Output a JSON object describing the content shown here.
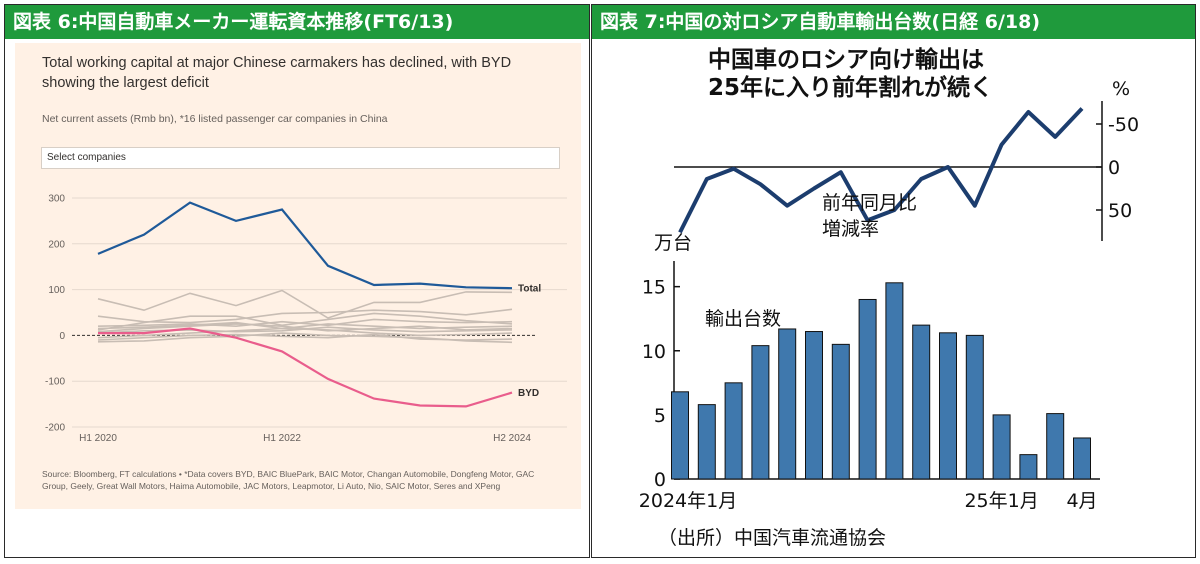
{
  "left_panel": {
    "header": "図表 6:中国自動車メーカー運転資本推移(FT6/13)",
    "select_label": "Select companies"
  },
  "right_panel": {
    "header": "図表 7:中国の対ロシア自動車輸出台数(日経 6/18)"
  },
  "colors": {
    "header_bg": "#1f9a3c",
    "ft_background": "#fff1e5",
    "total_line": "#1f5a99",
    "byd_line": "#e95d8c",
    "other_lines": "#c8bdb4",
    "nk_line": "#1c3d6e",
    "nk_bar": "#3f78ad"
  },
  "chart_data": [
    {
      "type": "line",
      "title": "Total working capital at major Chinese carmakers has declined, with BYD showing the largest deficit",
      "subtitle": "Net current assets (Rmb bn), *16 listed passenger car companies in China",
      "x": [
        "H1 2020",
        "H2 2020",
        "H1 2021",
        "H2 2021",
        "H1 2022",
        "H2 2022",
        "H1 2023",
        "H2 2023",
        "H1 2024",
        "H2 2024"
      ],
      "x_tick_labels": [
        "H1 2020",
        "H1 2022",
        "H2 2024"
      ],
      "ylim": [
        -200,
        300
      ],
      "y_ticks": [
        "300",
        "200",
        "100",
        "0",
        "-100",
        "-200"
      ],
      "zero_line": "dashed",
      "grid": true,
      "series": [
        {
          "name": "Total",
          "values": [
            178,
            220,
            290,
            250,
            275,
            152,
            110,
            113,
            105,
            103
          ]
        },
        {
          "name": "BYD",
          "values": [
            5,
            5,
            15,
            -5,
            -35,
            -95,
            -138,
            -153,
            -155,
            -125
          ]
        }
      ],
      "other_companies": [
        [
          80,
          55,
          92,
          65,
          98,
          38,
          72,
          72,
          95,
          94
        ],
        [
          42,
          30,
          28,
          35,
          48,
          50,
          55,
          52,
          45,
          57
        ],
        [
          12,
          28,
          42,
          42,
          22,
          35,
          48,
          42,
          32,
          25
        ],
        [
          20,
          22,
          25,
          20,
          30,
          22,
          35,
          30,
          28,
          30
        ],
        [
          15,
          18,
          22,
          28,
          15,
          25,
          20,
          15,
          18,
          20
        ],
        [
          8,
          15,
          20,
          25,
          20,
          10,
          15,
          20,
          12,
          15
        ],
        [
          5,
          10,
          12,
          8,
          10,
          18,
          12,
          8,
          10,
          12
        ],
        [
          -5,
          0,
          5,
          10,
          15,
          12,
          5,
          0,
          2,
          5
        ],
        [
          -10,
          -5,
          0,
          2,
          -2,
          -5,
          2,
          -8,
          -10,
          -8
        ],
        [
          -14,
          -12,
          -5,
          -2,
          5,
          0,
          -2,
          -5,
          -12,
          -15
        ]
      ],
      "source": "Source: Bloomberg, FT calculations • *Data covers BYD, BAIC BluePark, BAIC Motor, Changan Automobile, Dongfeng Motor, GAC Group, Geely, Great Wall Motors, Haima Automobile, JAC Motors, Leapmotor, Li Auto, Nio, SAIC Motor, Seres and XPeng"
    },
    {
      "type": "line",
      "title": "中国車のロシア向け輸出は 25年に入り前年割れが続く",
      "series_label": "前年同月比 増減率",
      "unit": "%",
      "ylim": [
        -70,
        80
      ],
      "y_ticks": [
        "50",
        "0",
        "-50"
      ],
      "x": [
        "2024-01",
        "2024-02",
        "2024-03",
        "2024-04",
        "2024-05",
        "2024-06",
        "2024-07",
        "2024-08",
        "2024-09",
        "2024-10",
        "2024-11",
        "2024-12",
        "2025-01",
        "2025-02",
        "2025-03",
        "2025-04"
      ],
      "values": [
        76,
        14,
        2,
        20,
        45,
        25,
        6,
        62,
        50,
        14,
        0,
        45,
        -26,
        -64,
        -35,
        -68
      ]
    },
    {
      "type": "bar",
      "title": "輸出台数",
      "unit": "万台",
      "ylim": [
        0,
        17
      ],
      "y_ticks": [
        "15",
        "10",
        "5",
        "0"
      ],
      "x_tick_labels": [
        "2024年1月",
        "25年1月",
        "4月"
      ],
      "categories": [
        "2024-01",
        "2024-02",
        "2024-03",
        "2024-04",
        "2024-05",
        "2024-06",
        "2024-07",
        "2024-08",
        "2024-09",
        "2024-10",
        "2024-11",
        "2024-12",
        "2025-01",
        "2025-02",
        "2025-03",
        "2025-04"
      ],
      "values": [
        6.8,
        5.8,
        7.5,
        10.4,
        11.7,
        11.5,
        10.5,
        14.0,
        15.3,
        12.0,
        11.4,
        11.2,
        5.0,
        1.9,
        5.1,
        3.2
      ],
      "source": "（出所）中国汽車流通協会"
    }
  ]
}
